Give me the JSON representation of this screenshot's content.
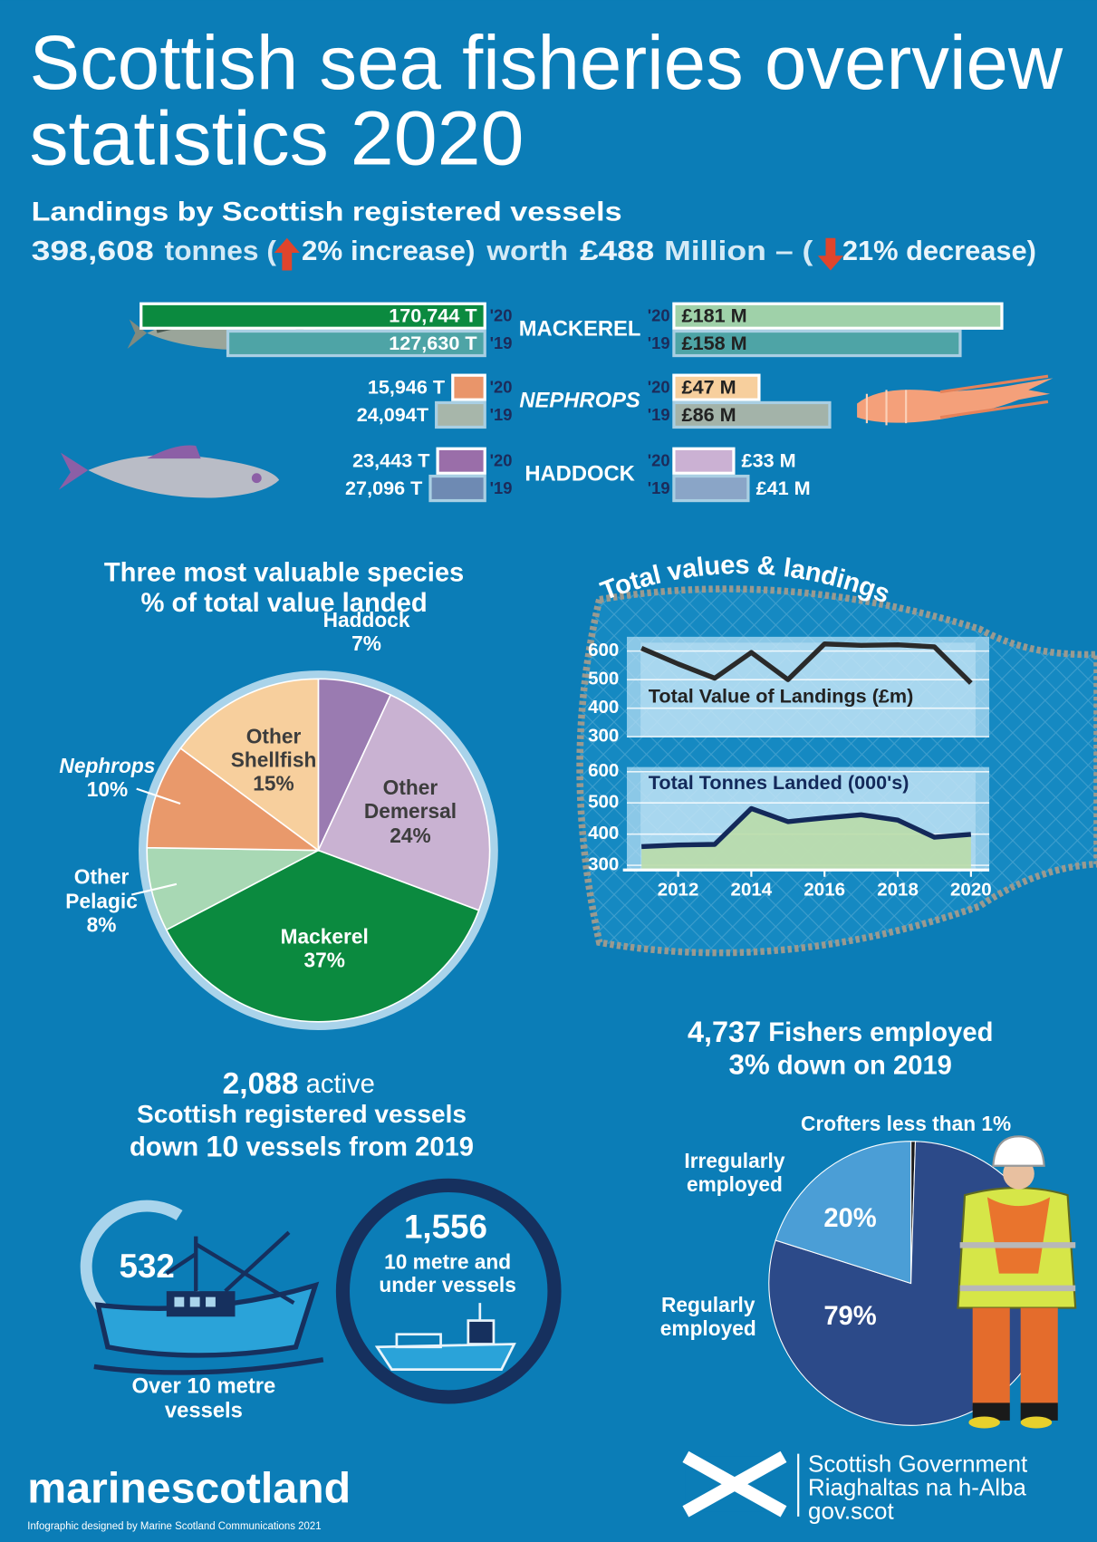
{
  "title_lines": [
    "Scottish sea fisheries overview",
    "statistics 2020"
  ],
  "landings": {
    "heading": "Landings by Scottish registered vessels",
    "tonnes": "398,608",
    "tonnes_word": "tonnes (",
    "tonnes_change": "2% increase)",
    "worth": "worth",
    "value": "£488",
    "value_word": "Million – (",
    "value_change": "21% decrease)"
  },
  "net_title": "Total values & landings",
  "vessels": {
    "count": "2,088",
    "count_word": "active",
    "line2": "Scottish registered vessels",
    "line3": [
      "down",
      "10",
      "vessels from 2019"
    ],
    "over": {
      "count": "532",
      "label": "Over 10 metre vessels"
    },
    "under": {
      "count": "1,556",
      "label": "10 metre and under vessels"
    }
  },
  "fishers": {
    "count": "4,737",
    "count_word": "Fishers employed",
    "change": "3%",
    "change_word": "down on 2019"
  },
  "footer": {
    "brand": "marinescotland",
    "credit": "Infographic designed by Marine Scotland Communications 2021",
    "gov": [
      "Scottish Government",
      "Riaghaltas na h-Alba",
      "gov.scot"
    ]
  },
  "chart_data": [
    {
      "type": "butterfly-bar",
      "categories": [
        "MACKEREL",
        "NEPHROPS",
        "HADDOCK"
      ],
      "tonnes": {
        "xlim": [
          0,
          180000
        ],
        "series": [
          {
            "name": "'20",
            "colors": [
              "#0b8a3f",
              "#e9956a",
              "#9a6ea9"
            ],
            "values": [
              170744,
              15946,
              23443
            ],
            "value_labels": [
              "170,744 T",
              "15,946 T",
              "23,443 T"
            ]
          },
          {
            "name": "'19",
            "colors": [
              "#4ea4a6",
              "#a7b6aa",
              "#6e8ab3"
            ],
            "values": [
              127630,
              24094,
              27096
            ],
            "value_labels": [
              "127,630 T",
              "24,094T",
              "27,096 T"
            ]
          }
        ]
      },
      "value": {
        "xlim": [
          0,
          200
        ],
        "series": [
          {
            "name": "'20",
            "colors": [
              "#9fd1a9",
              "#f7cf9d",
              "#cbb1d3"
            ],
            "values": [
              181,
              47,
              33
            ],
            "value_labels": [
              "£181 M",
              "£47 M",
              "£33 M"
            ]
          },
          {
            "name": "'19",
            "colors": [
              "#4ea4a6",
              "#a3b3a9",
              "#8aa5c7"
            ],
            "values": [
              158,
              86,
              41
            ],
            "value_labels": [
              "£158 M",
              "£86 M",
              "£41 M"
            ]
          }
        ]
      }
    },
    {
      "type": "pie",
      "title_lines": [
        "Three most valuable species",
        "% of total value landed"
      ],
      "categories": [
        "Haddock",
        "Other Demersal",
        "Mackerel",
        "Other Pelagic",
        "Nephrops",
        "Other Shellfish"
      ],
      "values": [
        7,
        24,
        37,
        8,
        10,
        15
      ],
      "value_labels": [
        "7%",
        "24%",
        "37%",
        "8%",
        "10%",
        "15%"
      ],
      "colors": [
        "#9a7bb1",
        "#c9b2d2",
        "#0b8a3f",
        "#a8d8b4",
        "#e9996b",
        "#f7cf9d"
      ]
    },
    {
      "type": "line",
      "title": "Total Value of Landings (£m)",
      "x": [
        2011,
        2012,
        2013,
        2014,
        2015,
        2016,
        2017,
        2018,
        2019,
        2020
      ],
      "values": [
        610,
        555,
        505,
        595,
        500,
        625,
        620,
        622,
        615,
        488
      ],
      "xlim": [
        2010.6,
        2020.5
      ],
      "ylim": [
        300,
        650
      ],
      "yticks": [
        300,
        400,
        500,
        600
      ],
      "color": "#2a2a2a",
      "grid": true
    },
    {
      "type": "line",
      "title": "Total Tonnes Landed (000's)",
      "x": [
        2011,
        2012,
        2013,
        2014,
        2015,
        2016,
        2017,
        2018,
        2019,
        2020
      ],
      "values": [
        360,
        365,
        367,
        482,
        440,
        452,
        462,
        445,
        390,
        399
      ],
      "xlim": [
        2010.6,
        2020.5
      ],
      "ylim": [
        285,
        615
      ],
      "yticks": [
        300,
        400,
        500,
        600
      ],
      "xticks": [
        2012,
        2014,
        2016,
        2018,
        2020
      ],
      "color": "#13295a",
      "area_color": "#b9dba8",
      "grid": true
    },
    {
      "type": "pie",
      "categories": [
        "Crofters less than 1%",
        "Regularly employed",
        "Irregularly employed"
      ],
      "values": [
        0.5,
        79,
        20
      ],
      "value_labels": [
        null,
        "79%",
        "20%"
      ],
      "colors": [
        "#1a1a1a",
        "#2c4a89",
        "#4b9ed6"
      ]
    }
  ]
}
